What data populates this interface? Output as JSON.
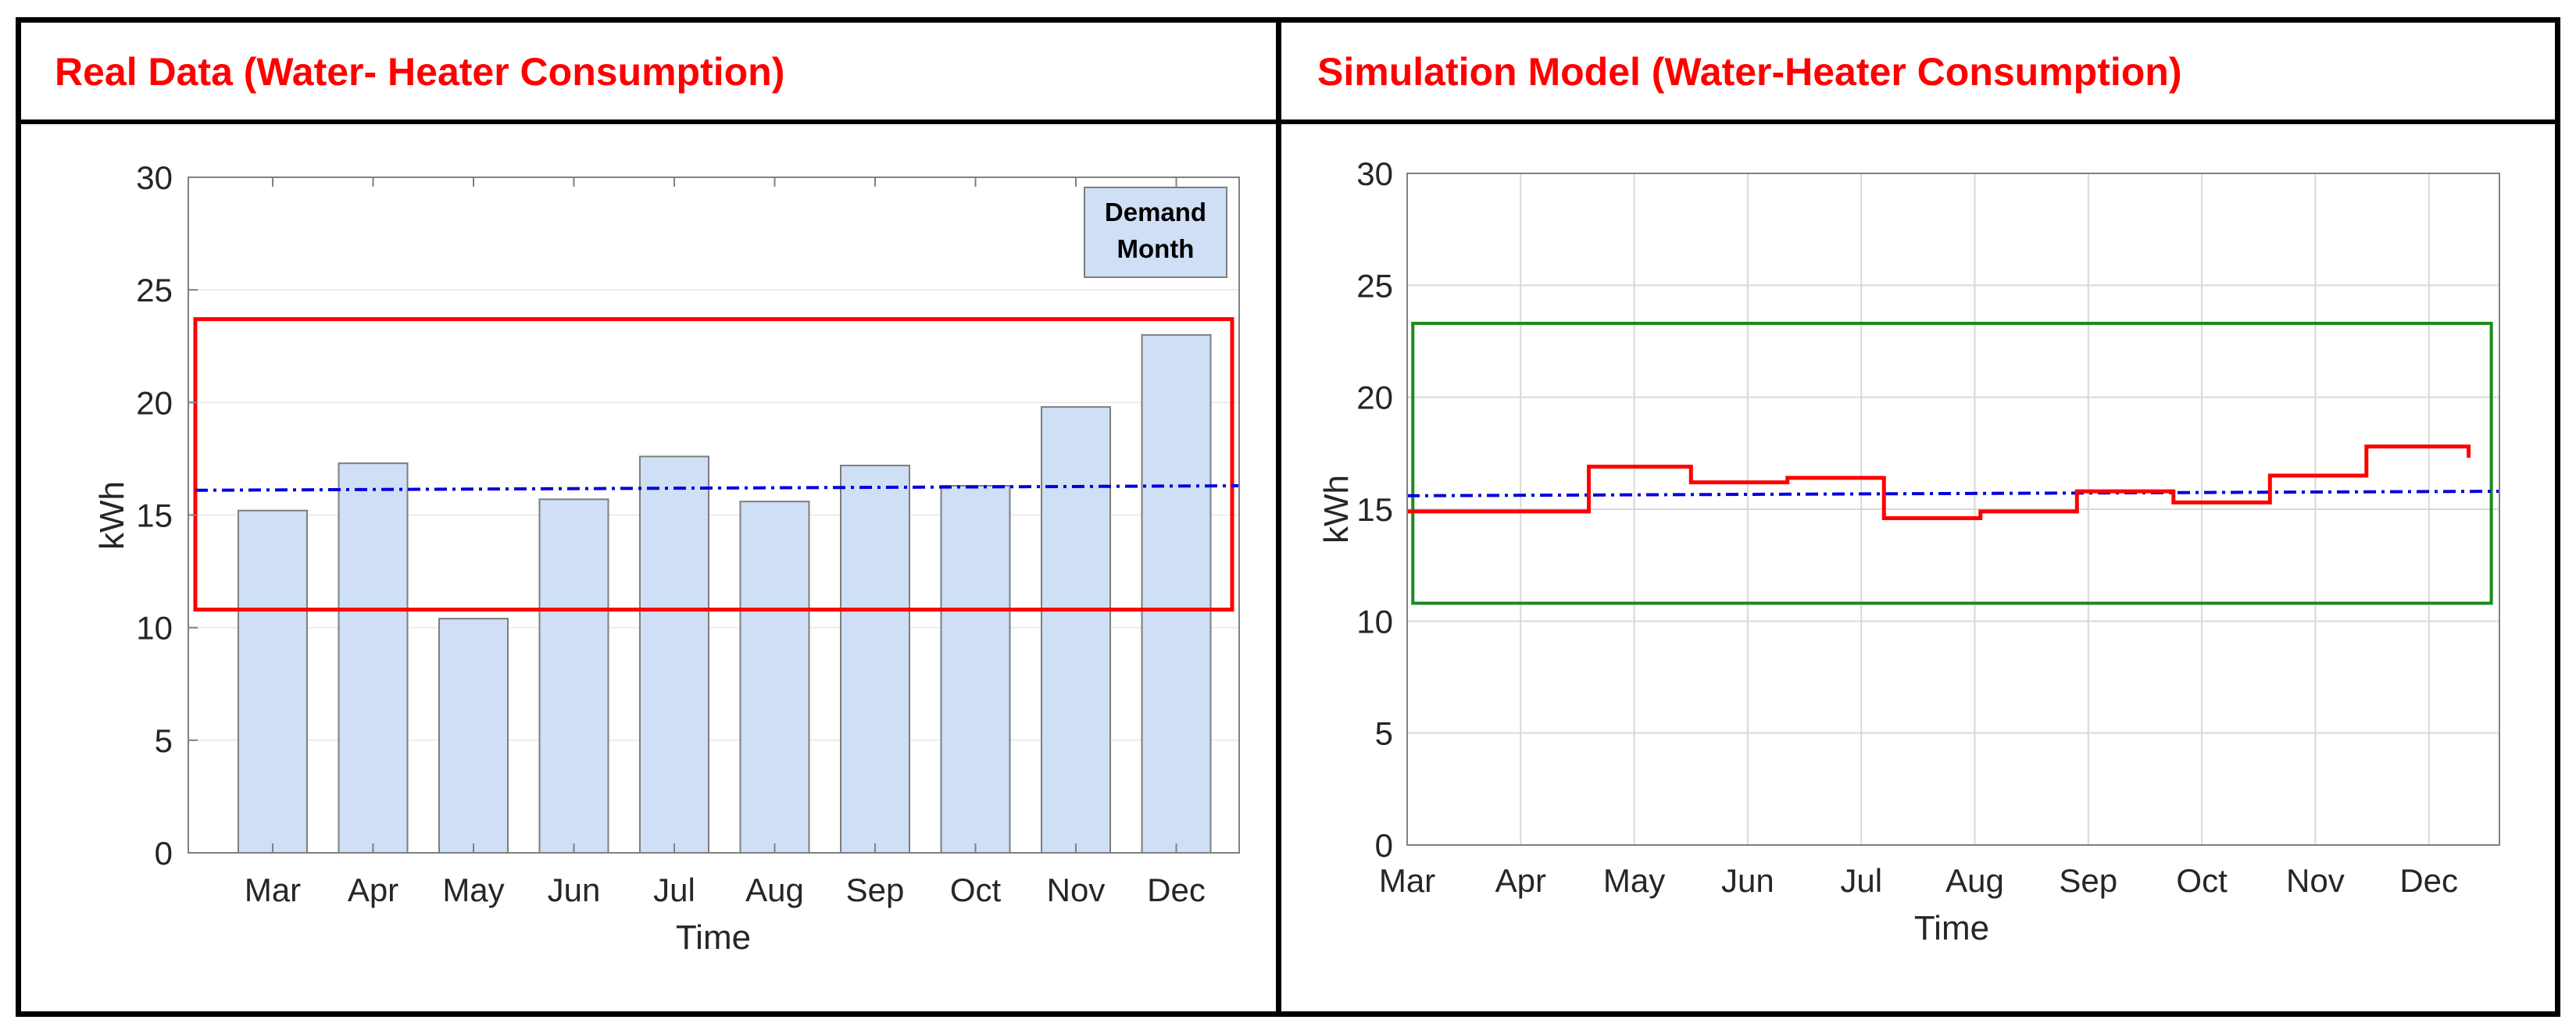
{
  "headers": {
    "left": "Real Data (Water- Heater Consumption)",
    "right": "Simulation Model (Water-Heater Consumption)"
  },
  "colors": {
    "header_text": "#ff0000",
    "bar_fill": "#cfdff5",
    "bar_stroke": "#7d7d7d",
    "red_box": "#ff0000",
    "green_box": "#1a8a1a",
    "avg_line": "#0000dd",
    "step_line": "#ff0000"
  },
  "chart_data": [
    {
      "type": "bar",
      "categories": [
        "Mar",
        "Apr",
        "May",
        "Jun",
        "Jul",
        "Aug",
        "Sep",
        "Oct",
        "Nov",
        "Dec"
      ],
      "values": [
        15.2,
        17.3,
        10.4,
        15.7,
        17.6,
        15.6,
        17.2,
        16.3,
        19.8,
        23.0
      ],
      "ylim": [
        0,
        30
      ],
      "yticks": [
        0,
        5,
        10,
        15,
        20,
        25,
        30
      ],
      "xlabel": "Time",
      "ylabel": "kWh",
      "legend": {
        "label_line1": "Demand",
        "label_line2": "Month",
        "position": "top-right"
      },
      "band": {
        "low": 10.8,
        "high": 23.7
      },
      "average": {
        "start": 16.1,
        "end": 16.3
      },
      "grid": "horizontal"
    },
    {
      "type": "line",
      "categories": [
        "Mar",
        "Apr",
        "May",
        "Jun",
        "Jul",
        "Aug",
        "Sep",
        "Oct",
        "Nov",
        "Dec"
      ],
      "x_range": [
        0,
        9.6
      ],
      "ylim": [
        0,
        30
      ],
      "yticks": [
        0,
        5,
        10,
        15,
        20,
        25,
        30
      ],
      "xlabel": "Time",
      "ylabel": "kWh",
      "grid": "both",
      "step_series": [
        {
          "from": 0.0,
          "to": 1.6,
          "value": 14.9
        },
        {
          "from": 1.6,
          "to": 2.5,
          "value": 16.9
        },
        {
          "from": 2.5,
          "to": 3.35,
          "value": 16.2
        },
        {
          "from": 3.35,
          "to": 4.2,
          "value": 16.4
        },
        {
          "from": 4.2,
          "to": 5.05,
          "value": 14.6
        },
        {
          "from": 5.05,
          "to": 5.9,
          "value": 14.9
        },
        {
          "from": 5.9,
          "to": 6.75,
          "value": 15.8
        },
        {
          "from": 6.75,
          "to": 7.6,
          "value": 15.3
        },
        {
          "from": 7.6,
          "to": 8.45,
          "value": 16.5
        },
        {
          "from": 8.45,
          "to": 9.35,
          "value": 17.8
        }
      ],
      "step_tail": 17.3,
      "band": {
        "x_from": 0.05,
        "x_to": 9.55,
        "low": 10.8,
        "high": 23.3
      },
      "average": {
        "start": 15.6,
        "end": 15.8
      }
    }
  ]
}
